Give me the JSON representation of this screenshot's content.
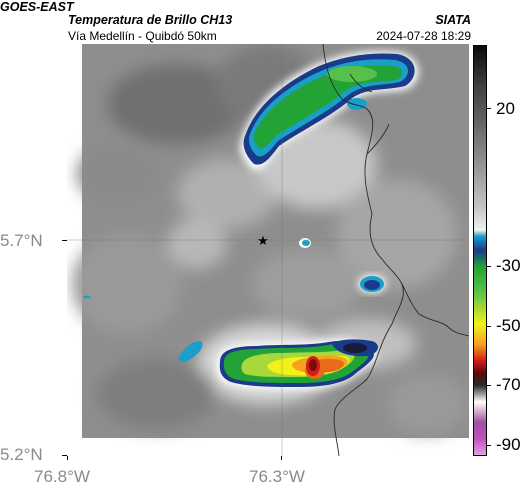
{
  "header": {
    "satellite": "GOES-EAST",
    "product": "Temperatura de Brillo CH13",
    "region": "Vía Medellín - Quibdó 50km",
    "organization": "SIATA",
    "timestamp": "2024-07-28 18:29"
  },
  "axes": {
    "y_ticks": [
      "5.7°N",
      "5.2°N"
    ],
    "x_ticks": [
      "76.8°W",
      "76.3°W"
    ]
  },
  "colorbar": {
    "labels": [
      "20",
      "-30",
      "-50",
      "-70",
      "-90"
    ]
  },
  "colors": {
    "cloud_gray": "#8c8c8c",
    "cold_blue": "#1a3a8a",
    "green": "#22a336",
    "yellow": "#f2f21a",
    "red": "#d41a1a",
    "magenta": "#c24ec2"
  }
}
